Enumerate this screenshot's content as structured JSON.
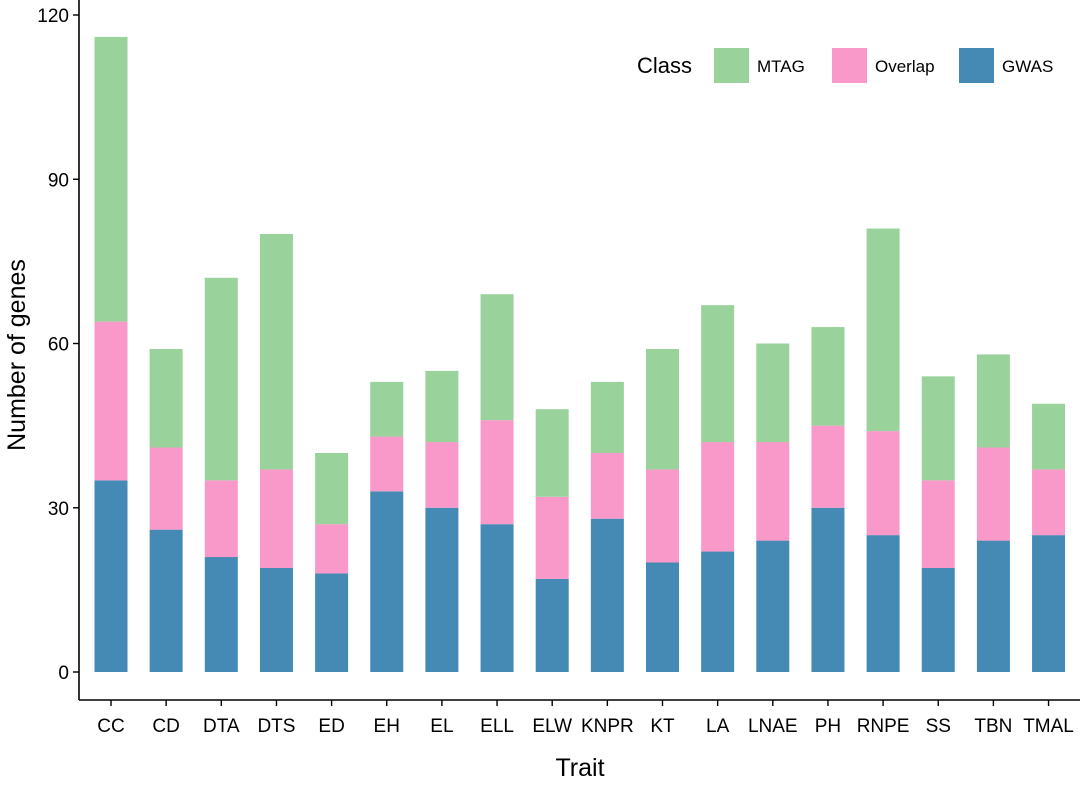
{
  "chart_data": {
    "type": "bar",
    "stacked": true,
    "xlabel": "Trait",
    "ylabel": "Number of genes",
    "ylim": [
      0,
      120
    ],
    "yticks": [
      0,
      30,
      60,
      90,
      120
    ],
    "grid": false,
    "legend_title": "Class",
    "legend_position": "top-right",
    "categories": [
      "CC",
      "CD",
      "DTA",
      "DTS",
      "ED",
      "EH",
      "EL",
      "ELL",
      "ELW",
      "KNPR",
      "KT",
      "LA",
      "LNAE",
      "PH",
      "RNPE",
      "SS",
      "TBN",
      "TMAL"
    ],
    "series": [
      {
        "name": "GWAS",
        "color": "#4589b5",
        "values": [
          35,
          26,
          21,
          19,
          18,
          33,
          30,
          27,
          17,
          28,
          20,
          22,
          24,
          30,
          25,
          19,
          24,
          25
        ]
      },
      {
        "name": "Overlap",
        "color": "#f899c9",
        "values": [
          29,
          15,
          14,
          18,
          9,
          10,
          12,
          19,
          15,
          12,
          17,
          20,
          18,
          15,
          19,
          16,
          17,
          12
        ]
      },
      {
        "name": "MTAG",
        "color": "#99d29b",
        "values": [
          52,
          18,
          37,
          43,
          13,
          10,
          13,
          23,
          16,
          13,
          22,
          25,
          18,
          18,
          37,
          19,
          17,
          12
        ]
      }
    ],
    "legend_order": [
      "MTAG",
      "Overlap",
      "GWAS"
    ]
  }
}
